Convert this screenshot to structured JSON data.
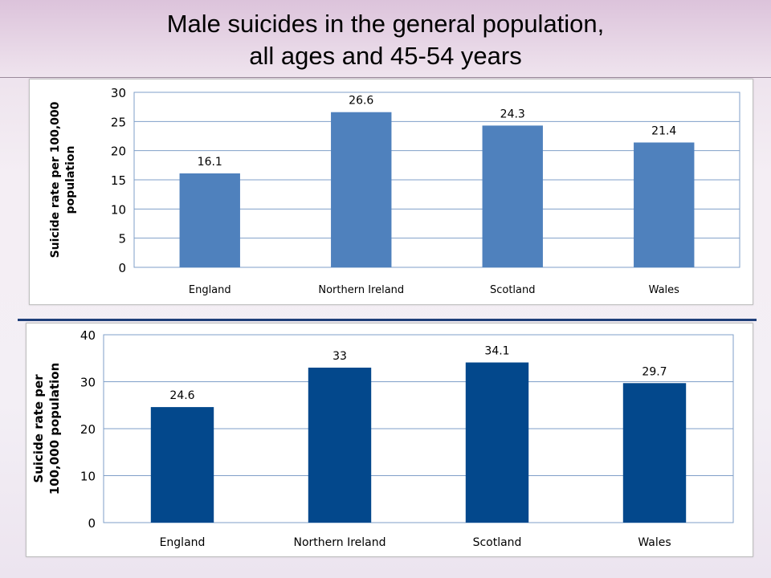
{
  "header": {
    "title_line1": "Male suicides in the general population,",
    "title_line2": "all ages and 45-54 years"
  },
  "chart_data": [
    {
      "type": "bar",
      "title": "",
      "categories": [
        "England",
        "Northern Ireland",
        "Scotland",
        "Wales"
      ],
      "values": [
        16.1,
        26.6,
        24.3,
        21.4
      ],
      "value_labels": [
        "16.1",
        "26.6",
        "24.3",
        "21.4"
      ],
      "ylabel_lines": [
        "Suicide rate per 100,000",
        "population"
      ],
      "ylim": [
        0,
        30
      ],
      "yticks": [
        0,
        5,
        10,
        15,
        20,
        25,
        30
      ],
      "grid": true,
      "bar_color": "#4f81bd"
    },
    {
      "type": "bar",
      "title": "",
      "categories": [
        "England",
        "Northern Ireland",
        "Scotland",
        "Wales"
      ],
      "values": [
        24.6,
        33,
        34.1,
        29.7
      ],
      "value_labels": [
        "24.6",
        "33",
        "34.1",
        "29.7"
      ],
      "ylabel_lines": [
        "Suicide rate per",
        "100,000 population"
      ],
      "ylim": [
        0,
        40
      ],
      "yticks": [
        0,
        10,
        20,
        30,
        40
      ],
      "grid": true,
      "bar_color": "#03488c"
    }
  ]
}
